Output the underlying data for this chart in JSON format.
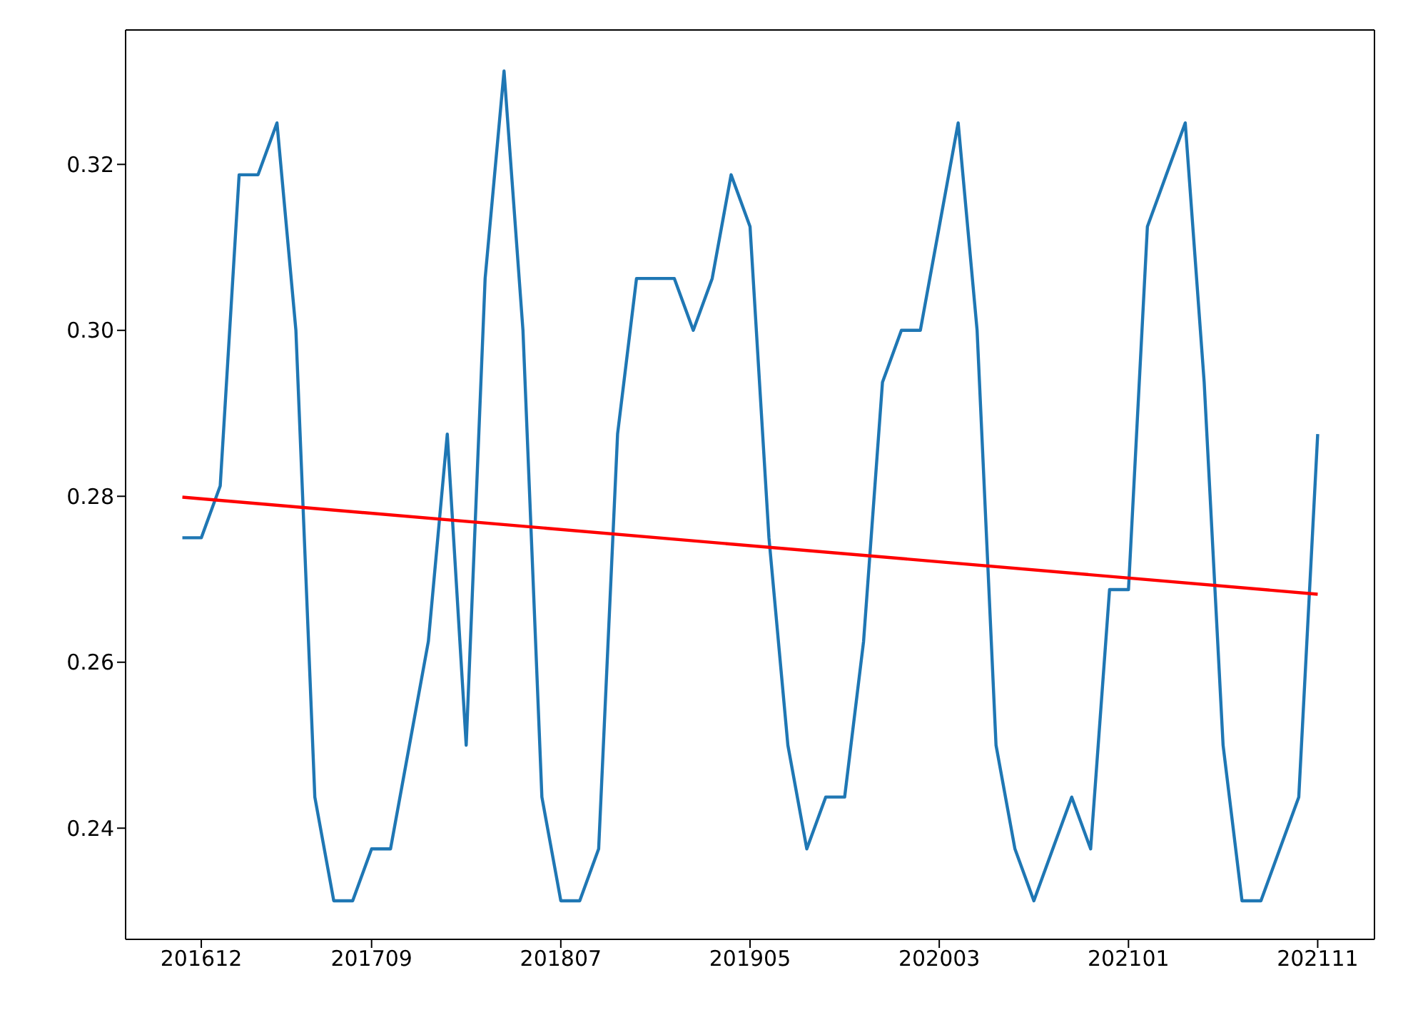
{
  "chart_data": {
    "type": "line",
    "categories": [
      null,
      "201612",
      null,
      null,
      null,
      null,
      null,
      null,
      null,
      null,
      "201709",
      null,
      null,
      null,
      null,
      null,
      null,
      null,
      null,
      null,
      "201807",
      null,
      null,
      null,
      null,
      null,
      null,
      null,
      null,
      null,
      "201905",
      null,
      null,
      null,
      null,
      null,
      null,
      null,
      null,
      null,
      "202003",
      null,
      null,
      null,
      null,
      null,
      null,
      null,
      null,
      null,
      "202101",
      null,
      null,
      null,
      null,
      null,
      null,
      null,
      null,
      null,
      "202111"
    ],
    "series": [
      {
        "color": "#1f77b4",
        "values": [
          0.275,
          0.275,
          0.28125,
          0.31875,
          0.31875,
          0.325,
          0.3,
          0.24375,
          0.23125,
          0.23125,
          0.2375,
          0.2375,
          0.25,
          0.2625,
          0.2875,
          0.25,
          0.30625,
          0.33125,
          0.3,
          0.24375,
          0.23125,
          0.23125,
          0.2375,
          0.2875,
          0.30625,
          0.30625,
          0.30625,
          0.3,
          0.30625,
          0.31875,
          0.3125,
          0.275,
          0.25,
          0.2375,
          0.24375,
          0.24375,
          0.2625,
          0.29375,
          0.3,
          0.3,
          0.3125,
          0.325,
          0.3,
          0.25,
          0.2375,
          0.23125,
          0.2375,
          0.24375,
          0.2375,
          0.26875,
          0.26875,
          0.3125,
          0.31875,
          0.325,
          0.29375,
          0.25,
          0.23125,
          0.23125,
          0.2375,
          0.24375,
          0.2875
        ]
      },
      {
        "color": "#ff0000",
        "values": [
          0.2799,
          null,
          null,
          null,
          null,
          null,
          null,
          null,
          null,
          null,
          null,
          null,
          null,
          null,
          null,
          null,
          null,
          null,
          null,
          null,
          null,
          null,
          null,
          null,
          null,
          null,
          null,
          null,
          null,
          null,
          null,
          null,
          null,
          null,
          null,
          null,
          null,
          null,
          null,
          null,
          null,
          null,
          null,
          null,
          null,
          null,
          null,
          null,
          null,
          null,
          null,
          null,
          null,
          null,
          null,
          null,
          null,
          null,
          null,
          null,
          0.2682
        ]
      }
    ],
    "ylim": [
      0.2266,
      0.3362
    ],
    "yticks": [
      {
        "value": 0.24,
        "label": "0.24"
      },
      {
        "value": 0.26,
        "label": "0.26"
      },
      {
        "value": 0.28,
        "label": "0.28"
      },
      {
        "value": 0.3,
        "label": "0.30"
      },
      {
        "value": 0.32,
        "label": "0.32"
      }
    ],
    "grid": false,
    "legend": false,
    "marker": "none",
    "line_style": "solid"
  }
}
